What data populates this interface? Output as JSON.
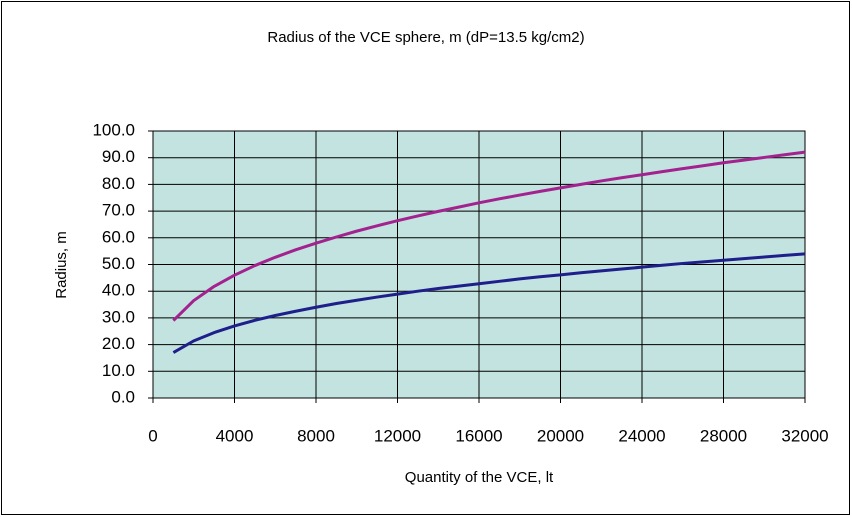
{
  "chart_data": {
    "type": "line",
    "title": "Radius of the VCE sphere, m (dP=13.5 kg/cm2)",
    "x_label": "Quantity of the VCE, lt",
    "y_label": "Radius, m",
    "x": [
      1000,
      2000,
      3000,
      4000,
      5000,
      6000,
      7000,
      8000,
      9000,
      10000,
      11000,
      12000,
      13000,
      14000,
      15000,
      16000,
      17000,
      18000,
      19000,
      20000,
      21000,
      22000,
      23000,
      24000,
      25000,
      26000,
      27000,
      28000,
      29000,
      30000,
      31000,
      32000
    ],
    "series": [
      {
        "color": "#a3228f",
        "values": [
          29.0,
          36.5,
          41.8,
          46.0,
          49.6,
          52.7,
          55.5,
          58.0,
          60.3,
          62.5,
          64.5,
          66.4,
          68.2,
          69.9,
          71.5,
          73.1,
          74.6,
          76.0,
          77.4,
          78.7,
          80.0,
          81.3,
          82.5,
          83.6,
          84.8,
          85.9,
          87.0,
          88.1,
          89.1,
          90.1,
          91.1,
          92.1
        ]
      },
      {
        "color": "#1f1f8c",
        "values": [
          17.0,
          21.4,
          24.5,
          27.0,
          29.1,
          30.9,
          32.5,
          34.0,
          35.4,
          36.6,
          37.8,
          38.9,
          40.0,
          41.0,
          41.9,
          42.8,
          43.7,
          44.6,
          45.4,
          46.1,
          46.9,
          47.6,
          48.3,
          49.0,
          49.7,
          50.4,
          51.0,
          51.6,
          52.2,
          52.8,
          53.4,
          54.0
        ]
      }
    ],
    "xlim": [
      0,
      32000
    ],
    "xticks": [
      0,
      4000,
      8000,
      12000,
      16000,
      20000,
      24000,
      28000,
      32000
    ],
    "ylim": [
      0,
      100
    ],
    "yticks": [
      {
        "value": 0,
        "label": "0.0"
      },
      {
        "value": 10,
        "label": "10.0"
      },
      {
        "value": 20,
        "label": "20.0"
      },
      {
        "value": 30,
        "label": "30.0"
      },
      {
        "value": 40,
        "label": "40.0"
      },
      {
        "value": 50,
        "label": "50.0"
      },
      {
        "value": 60,
        "label": "60.0"
      },
      {
        "value": 70,
        "label": "70.0"
      },
      {
        "value": 80,
        "label": "80.0"
      },
      {
        "value": 90,
        "label": "90.0"
      },
      {
        "value": 100,
        "label": "100.0"
      }
    ],
    "grid": true,
    "plot_background": "#c2e3df"
  }
}
